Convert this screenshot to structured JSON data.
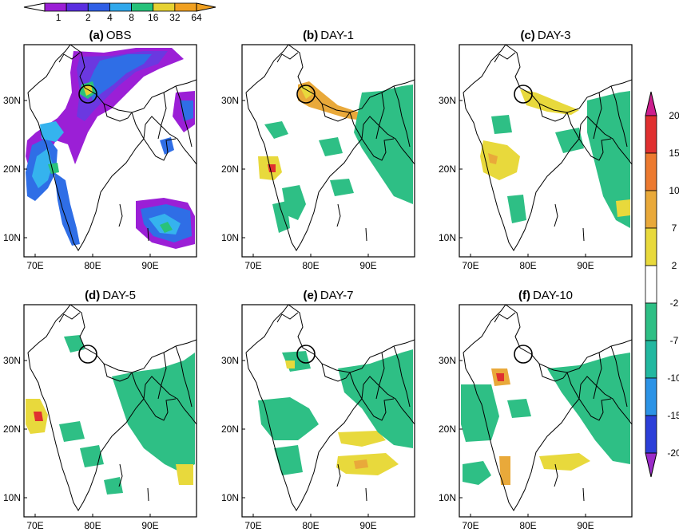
{
  "panels": [
    {
      "label": "(a)",
      "name": "OBS"
    },
    {
      "label": "(b)",
      "name": "DAY-1"
    },
    {
      "label": "(c)",
      "name": "DAY-3"
    },
    {
      "label": "(d)",
      "name": "DAY-5"
    },
    {
      "label": "(e)",
      "name": "DAY-7"
    },
    {
      "label": "(f)",
      "name": "DAY-10"
    }
  ],
  "axes": {
    "lon_ticks": [
      "70E",
      "80E",
      "90E"
    ],
    "lat_ticks": [
      "30N",
      "20N",
      "10N"
    ]
  },
  "obs_colorbar": {
    "labels": [
      "1",
      "2",
      "4",
      "8",
      "16",
      "32",
      "64"
    ],
    "colors": [
      "#9b1fd6",
      "#5a2ee0",
      "#2f5fe6",
      "#2fa8ec",
      "#26c27a",
      "#e6d232",
      "#f0a020"
    ]
  },
  "diff_colorbar": {
    "labels": [
      "20",
      "15",
      "10",
      "7",
      "2",
      "-2",
      "-7",
      "-10",
      "-15",
      "-20"
    ],
    "colors": [
      "#cc1f8e",
      "#e03030",
      "#ec7a30",
      "#e9a93a",
      "#e8d93c",
      "#ffffff",
      "#2ebf85",
      "#22b8a0",
      "#2c93e6",
      "#2c3fd8",
      "#9a2cc8"
    ]
  },
  "map_colors": {
    "obs": {
      "purple": "#9b1fd6",
      "violet": "#6b38e0",
      "blue": "#2f6ee6",
      "cyan": "#35b3ee",
      "green": "#29c27a",
      "yellow": "#e6d232",
      "orange": "#f0a020"
    },
    "diff": {
      "green": "#2ebf85",
      "yellow": "#e8d93c",
      "orange": "#e9a93a",
      "red": "#e03030",
      "blue": "#2c93e6"
    }
  }
}
